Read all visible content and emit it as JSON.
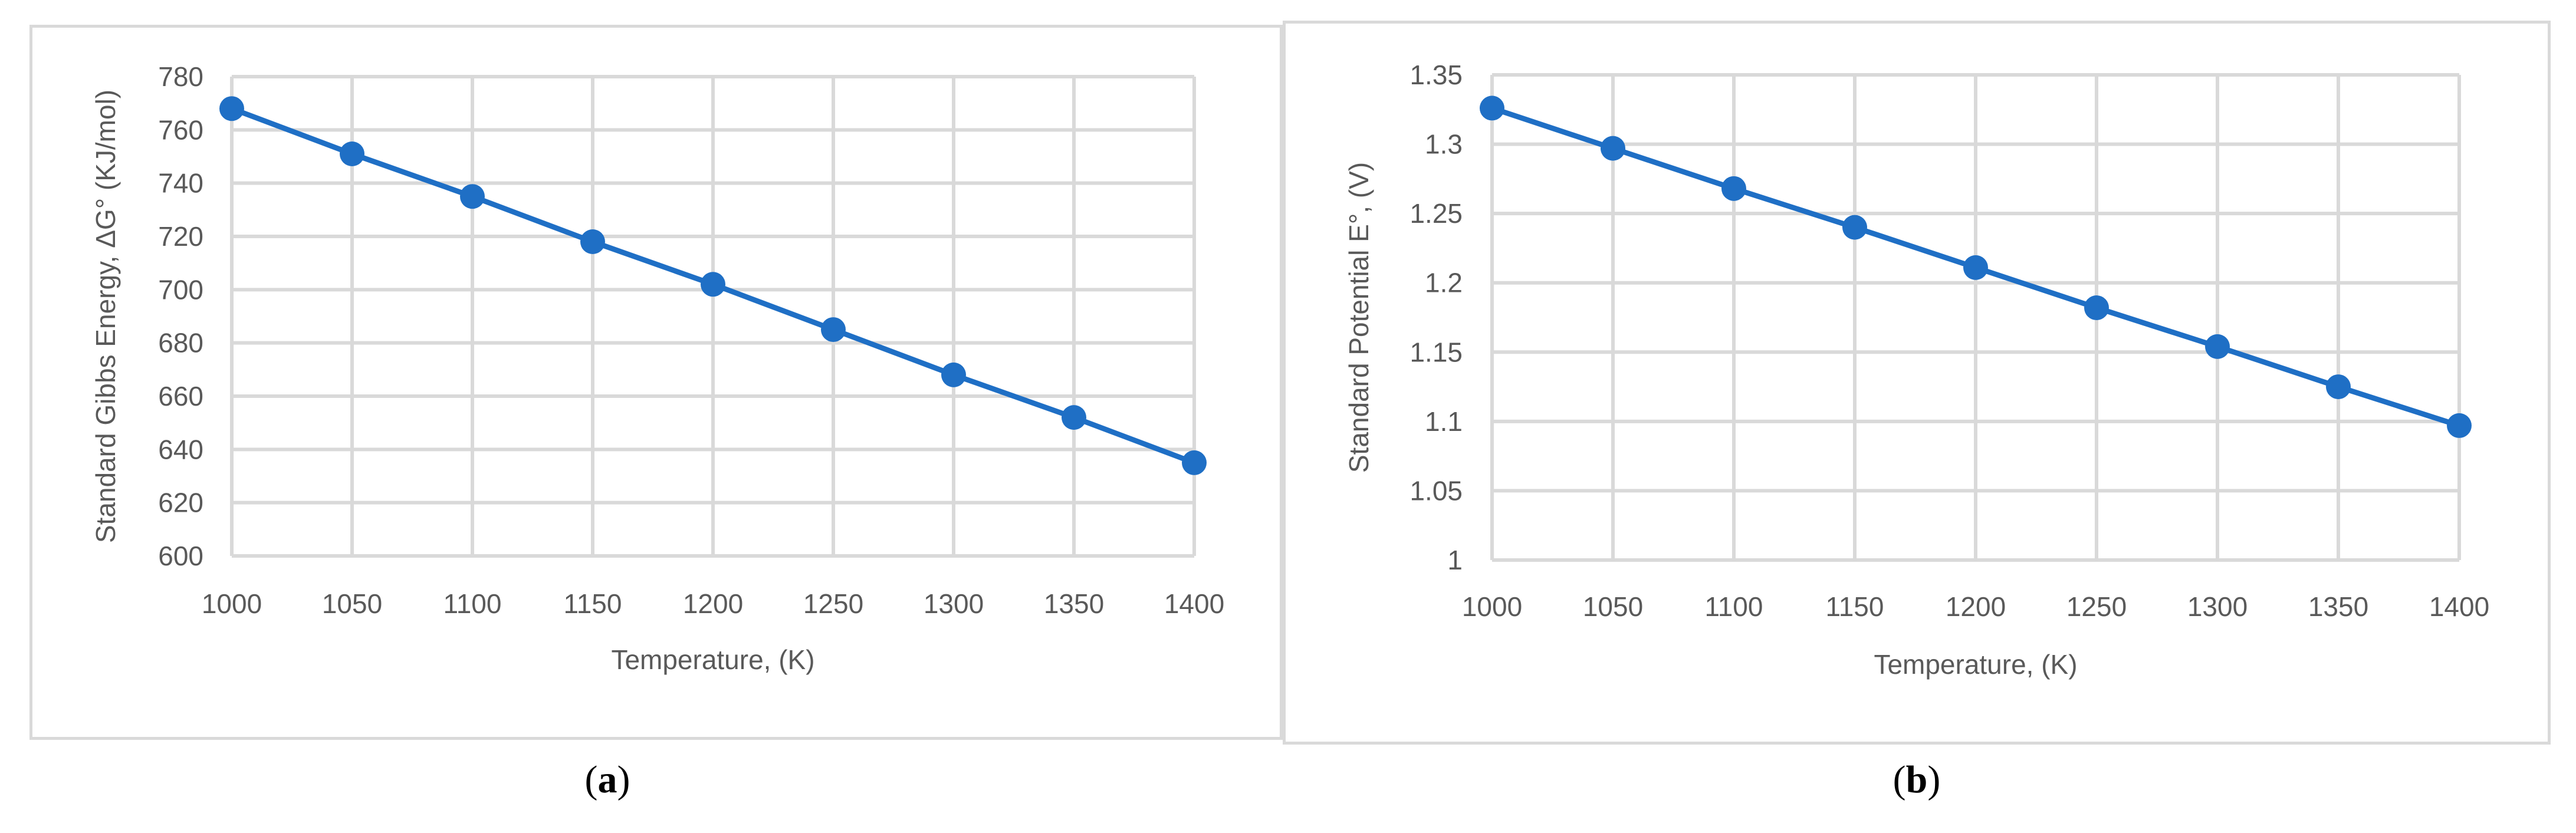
{
  "colors": {
    "series": "#1f6fc5",
    "grid": "#d9d9d9",
    "text": "#595959"
  },
  "chart_data": [
    {
      "type": "line",
      "panel": "a",
      "caption_letter": "a",
      "xlabel": "Temperature, (K)",
      "ylabel": "Standard Gibbs Energy, ΔG° (KJ/mol)",
      "x": [
        1000,
        1050,
        1100,
        1150,
        1200,
        1250,
        1300,
        1350,
        1400
      ],
      "series": [
        {
          "values": [
            768,
            751,
            735,
            718,
            702,
            685,
            668,
            652,
            635
          ]
        }
      ],
      "xlim": [
        1000,
        1400
      ],
      "ylim": [
        600,
        780
      ],
      "xticks": [
        "1000",
        "1050",
        "1100",
        "1150",
        "1200",
        "1250",
        "1300",
        "1350",
        "1400"
      ],
      "yticks": [
        "600",
        "620",
        "640",
        "660",
        "680",
        "700",
        "720",
        "740",
        "760",
        "780"
      ],
      "grid": true,
      "markers": true
    },
    {
      "type": "line",
      "panel": "b",
      "caption_letter": "b",
      "xlabel": "Temperature, (K)",
      "ylabel": "Standard Potential E°, (V)",
      "x": [
        1000,
        1050,
        1100,
        1150,
        1200,
        1250,
        1300,
        1350,
        1400
      ],
      "series": [
        {
          "values": [
            1.326,
            1.297,
            1.268,
            1.24,
            1.211,
            1.182,
            1.154,
            1.125,
            1.097
          ]
        }
      ],
      "xlim": [
        1000,
        1400
      ],
      "ylim": [
        1.0,
        1.35
      ],
      "xticks": [
        "1000",
        "1050",
        "1100",
        "1150",
        "1200",
        "1250",
        "1300",
        "1350",
        "1400"
      ],
      "yticks": [
        "1",
        "1.05",
        "1.1",
        "1.15",
        "1.2",
        "1.25",
        "1.3",
        "1.35"
      ],
      "grid": true,
      "markers": true
    }
  ]
}
